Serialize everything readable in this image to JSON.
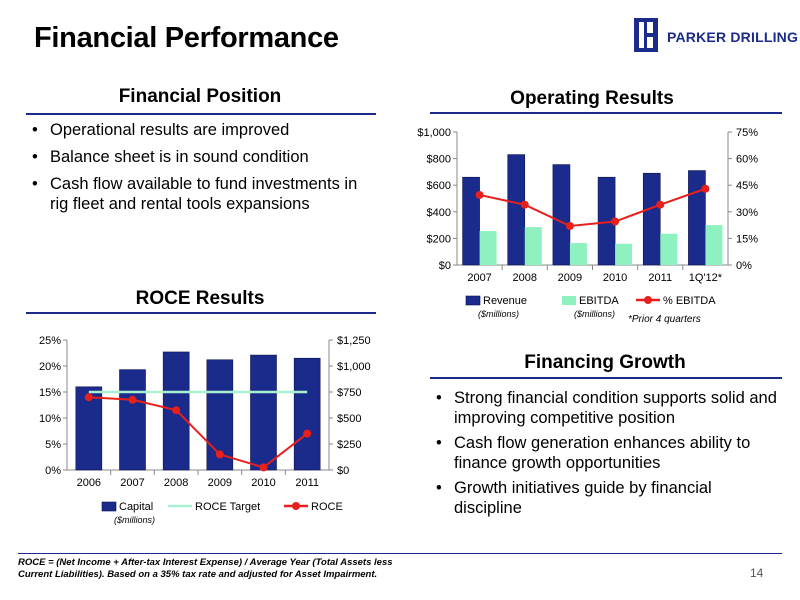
{
  "title": "Financial Performance",
  "logo": {
    "text": "PARKER DRILLING"
  },
  "financial_position": {
    "heading": "Financial Position",
    "bullets": [
      "Operational results are improved",
      "Balance sheet is in sound condition",
      "Cash flow available to fund investments in rig fleet  and rental tools expansions"
    ]
  },
  "financing_growth": {
    "heading": "Financing Growth",
    "bullets": [
      "Strong financial condition supports solid and improving competitive position",
      "Cash flow generation enhances ability to finance growth opportunities",
      "Growth initiatives guide by financial discipline"
    ]
  },
  "footnote": "ROCE = (Net Income + After-tax Interest Expense) / Average Year (Total Assets less Current Liabilities).  Based on a 35% tax rate and adjusted for Asset Impairment.",
  "page_number": "14",
  "colors": {
    "navy": "#1a2b8c",
    "ebitda": "#8ff0c0",
    "red": "#e8201b",
    "target": "#a8f0d0"
  },
  "chart_data": [
    {
      "type": "bar",
      "title": "Operating Results",
      "categories": [
        "2007",
        "2008",
        "2009",
        "2010",
        "2011",
        "1Q'12*"
      ],
      "series": [
        {
          "name": "Revenue",
          "sublabel": "($millions)",
          "kind": "bar",
          "axis": "left",
          "values": [
            660,
            830,
            755,
            660,
            690,
            710
          ]
        },
        {
          "name": "EBITDA",
          "sublabel": "($millions)",
          "kind": "bar",
          "axis": "left",
          "values": [
            255,
            285,
            165,
            160,
            235,
            300
          ]
        },
        {
          "name": "% EBITDA",
          "kind": "line",
          "axis": "right",
          "values": [
            39.5,
            34,
            22,
            24.5,
            34,
            43
          ]
        }
      ],
      "y_left": {
        "ticks": [
          "$0",
          "$200",
          "$400",
          "$600",
          "$800",
          "$1,000"
        ],
        "range": [
          0,
          1000
        ]
      },
      "y_right": {
        "ticks": [
          "0%",
          "15%",
          "30%",
          "45%",
          "60%",
          "75%"
        ],
        "range": [
          0,
          75
        ]
      },
      "note": "*Prior 4 quarters",
      "legend_position": "bottom"
    },
    {
      "type": "bar",
      "title": "ROCE Results",
      "categories": [
        "2006",
        "2007",
        "2008",
        "2009",
        "2010",
        "2011"
      ],
      "series": [
        {
          "name": "Capital",
          "sublabel": "($millions)",
          "kind": "bar",
          "axis": "right",
          "values": [
            800,
            965,
            1135,
            1060,
            1105,
            1075
          ]
        },
        {
          "name": "ROCE Target",
          "kind": "line",
          "axis": "left",
          "values": [
            15,
            15,
            15,
            15,
            15,
            15
          ]
        },
        {
          "name": "ROCE",
          "kind": "line",
          "axis": "left",
          "values": [
            14,
            13.5,
            11.5,
            3,
            0.5,
            7
          ]
        }
      ],
      "y_left": {
        "ticks": [
          "0%",
          "5%",
          "10%",
          "15%",
          "20%",
          "25%"
        ],
        "range": [
          0,
          25
        ]
      },
      "y_right": {
        "ticks": [
          "$0",
          "$250",
          "$500",
          "$750",
          "$1,000",
          "$1,250"
        ],
        "range": [
          0,
          1250
        ]
      },
      "legend_position": "bottom"
    }
  ]
}
